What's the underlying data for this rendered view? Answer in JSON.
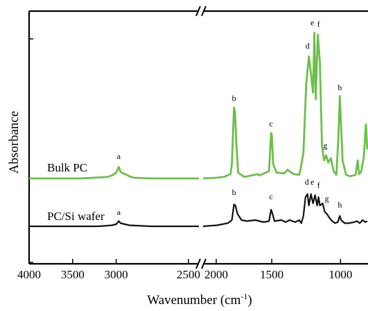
{
  "chart_data": {
    "type": "line",
    "title": "",
    "xlabel": "Wavenumber (cm",
    "xlabel_superscript": "-1",
    "xlabel_close": ")",
    "ylabel": "Absorbance",
    "x_reversed": true,
    "xlim": [
      4000,
      800
    ],
    "axis_break": [
      2050,
      2000
    ],
    "x_ticks": [
      {
        "value": 4000,
        "label": "4000"
      },
      {
        "value": 3500,
        "label": "3500"
      },
      {
        "value": 3000,
        "label": "3000"
      },
      {
        "value": 2500,
        "label": "2500"
      },
      {
        "value": 2000,
        "label": "2000"
      },
      {
        "value": 1500,
        "label": "1500"
      },
      {
        "value": 1000,
        "label": "1000"
      }
    ],
    "y_ticks": false,
    "grid": false,
    "series": [
      {
        "name": "Bulk PC",
        "color": "#6cbf4a",
        "baseline": 0,
        "points": [
          [
            4000,
            0
          ],
          [
            3400,
            0
          ],
          [
            3100,
            0.02
          ],
          [
            3050,
            0.04
          ],
          [
            3000,
            0.08
          ],
          [
            2970,
            0.16
          ],
          [
            2950,
            0.09
          ],
          [
            2920,
            0.07
          ],
          [
            2880,
            0.05
          ],
          [
            2850,
            0.03
          ],
          [
            2800,
            0.01
          ],
          [
            2600,
            0
          ],
          [
            2050,
            0
          ],
          [
            2000,
            0
          ],
          [
            1900,
            0.01
          ],
          [
            1850,
            0.02
          ],
          [
            1800,
            0.06
          ],
          [
            1790,
            0.2
          ],
          [
            1775,
            0.98
          ],
          [
            1768,
            0.92
          ],
          [
            1758,
            0.5
          ],
          [
            1745,
            0.08
          ],
          [
            1700,
            0.02
          ],
          [
            1600,
            0.06
          ],
          [
            1590,
            0.04
          ],
          [
            1520,
            0.1
          ],
          [
            1505,
            0.63
          ],
          [
            1500,
            0.6
          ],
          [
            1490,
            0.2
          ],
          [
            1465,
            0.08
          ],
          [
            1410,
            0.07
          ],
          [
            1385,
            0.12
          ],
          [
            1365,
            0.09
          ],
          [
            1340,
            0.06
          ],
          [
            1300,
            0.05
          ],
          [
            1290,
            0.14
          ],
          [
            1270,
            0.35
          ],
          [
            1250,
            1.3
          ],
          [
            1230,
            1.69
          ],
          [
            1215,
            1.45
          ],
          [
            1200,
            1.19
          ],
          [
            1190,
            2.02
          ],
          [
            1180,
            1.1
          ],
          [
            1165,
            1.99
          ],
          [
            1150,
            1.6
          ],
          [
            1135,
            0.45
          ],
          [
            1120,
            0.25
          ],
          [
            1105,
            0.32
          ],
          [
            1090,
            0.22
          ],
          [
            1070,
            0.28
          ],
          [
            1050,
            0.1
          ],
          [
            1030,
            0.05
          ],
          [
            1015,
            0.6
          ],
          [
            1005,
            1.14
          ],
          [
            995,
            0.7
          ],
          [
            985,
            0.25
          ],
          [
            960,
            0.05
          ],
          [
            930,
            0.03
          ],
          [
            890,
            0.05
          ],
          [
            875,
            0.25
          ],
          [
            865,
            0.06
          ],
          [
            850,
            0.09
          ],
          [
            830,
            0.3
          ],
          [
            815,
            0.75
          ],
          [
            805,
            0.4
          ]
        ]
      },
      {
        "name": "PC/Si wafer",
        "color": "#111111",
        "baseline": 0,
        "points": [
          [
            4000,
            0
          ],
          [
            3200,
            0
          ],
          [
            3050,
            0.01
          ],
          [
            3000,
            0.02
          ],
          [
            2970,
            0.05
          ],
          [
            2950,
            0.03
          ],
          [
            2900,
            0.02
          ],
          [
            2850,
            0.01
          ],
          [
            2600,
            0
          ],
          [
            2050,
            0
          ],
          [
            2000,
            0
          ],
          [
            1900,
            0.01
          ],
          [
            1820,
            0.03
          ],
          [
            1790,
            0.06
          ],
          [
            1775,
            0.21
          ],
          [
            1765,
            0.2
          ],
          [
            1750,
            0.12
          ],
          [
            1720,
            0.06
          ],
          [
            1680,
            0.05
          ],
          [
            1620,
            0.06
          ],
          [
            1560,
            0.04
          ],
          [
            1520,
            0.05
          ],
          [
            1505,
            0.16
          ],
          [
            1495,
            0.12
          ],
          [
            1480,
            0.05
          ],
          [
            1430,
            0.06
          ],
          [
            1400,
            0.04
          ],
          [
            1370,
            0.06
          ],
          [
            1330,
            0.04
          ],
          [
            1300,
            0.06
          ],
          [
            1285,
            0.03
          ],
          [
            1270,
            0.1
          ],
          [
            1255,
            0.28
          ],
          [
            1240,
            0.31
          ],
          [
            1230,
            0.2
          ],
          [
            1215,
            0.31
          ],
          [
            1200,
            0.22
          ],
          [
            1185,
            0.3
          ],
          [
            1170,
            0.2
          ],
          [
            1160,
            0.28
          ],
          [
            1150,
            0.2
          ],
          [
            1130,
            0.22
          ],
          [
            1115,
            0.14
          ],
          [
            1100,
            0.12
          ],
          [
            1080,
            0.08
          ],
          [
            1060,
            0.05
          ],
          [
            1040,
            0.03
          ],
          [
            1020,
            0.04
          ],
          [
            1005,
            0.1
          ],
          [
            995,
            0.06
          ],
          [
            970,
            0.03
          ],
          [
            940,
            0.03
          ],
          [
            900,
            0.04
          ],
          [
            880,
            0.05
          ],
          [
            860,
            0.03
          ],
          [
            840,
            0.06
          ],
          [
            820,
            0.04
          ],
          [
            805,
            0.05
          ]
        ]
      }
    ],
    "peak_labels": [
      {
        "series": 0,
        "label": "a",
        "x": 2970,
        "y": 0.27
      },
      {
        "series": 0,
        "label": "b",
        "x": 1775,
        "y": 1.07
      },
      {
        "series": 0,
        "label": "c",
        "x": 1505,
        "y": 0.72
      },
      {
        "series": 0,
        "label": "d",
        "x": 1240,
        "y": 1.8
      },
      {
        "series": 0,
        "label": "e",
        "x": 1205,
        "y": 2.12
      },
      {
        "series": 0,
        "label": "f",
        "x": 1160,
        "y": 2.1
      },
      {
        "series": 0,
        "label": "g",
        "x": 1110,
        "y": 0.42
      },
      {
        "series": 0,
        "label": "h",
        "x": 1005,
        "y": 1.22
      },
      {
        "series": 1,
        "label": "a",
        "x": 2970,
        "y": 0.11
      },
      {
        "series": 1,
        "label": "b",
        "x": 1775,
        "y": 0.3
      },
      {
        "series": 1,
        "label": "c",
        "x": 1505,
        "y": 0.26
      },
      {
        "series": 1,
        "label": "d",
        "x": 1245,
        "y": 0.4
      },
      {
        "series": 1,
        "label": "e",
        "x": 1205,
        "y": 0.4
      },
      {
        "series": 1,
        "label": "f",
        "x": 1160,
        "y": 0.37
      },
      {
        "series": 1,
        "label": "g",
        "x": 1100,
        "y": 0.24
      },
      {
        "series": 1,
        "label": "h",
        "x": 1005,
        "y": 0.18
      }
    ]
  }
}
